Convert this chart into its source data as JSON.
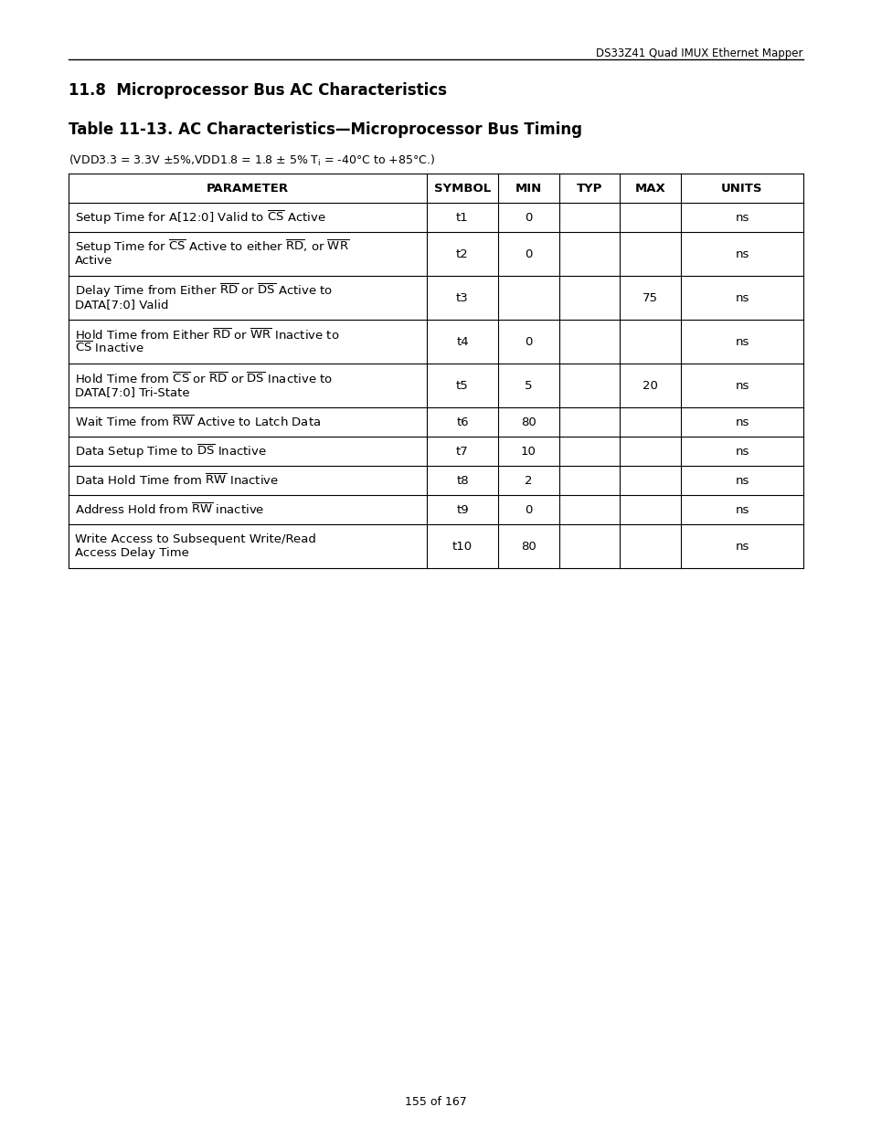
{
  "header_text": "DS33Z41 Quad IMUX Ethernet Mapper",
  "section_title": "11.8  Microprocessor Bus AC Characteristics",
  "table_title": "Table 11-13. AC Characteristics—Microprocessor Bus Timing",
  "condition": "(VDD3.3 = 3.3V ±5%,VDD1.8 = 1.8 ± 5% T$_i$ = -40°C to +85°C.)",
  "col_headers": [
    "PARAMETER",
    "SYMBOL",
    "MIN",
    "TYP",
    "MAX",
    "UNITS"
  ],
  "rows": [
    {
      "param_lines": [
        "Setup Time for A[12:0] Valid to $\\overline{\\mathrm{CS}}$ Active"
      ],
      "symbol": "t1",
      "min": "0",
      "typ": "",
      "max": "",
      "units": "ns"
    },
    {
      "param_lines": [
        "Setup Time for $\\overline{\\mathrm{CS}}$ Active to either $\\overline{\\mathrm{RD}}$, or $\\overline{\\mathrm{WR}}$",
        "Active"
      ],
      "symbol": "t2",
      "min": "0",
      "typ": "",
      "max": "",
      "units": "ns"
    },
    {
      "param_lines": [
        "Delay Time from Either $\\overline{\\mathrm{RD}}$ or $\\overline{\\mathrm{DS}}$ Active to",
        "DATA[7:0] Valid"
      ],
      "symbol": "t3",
      "min": "",
      "typ": "",
      "max": "75",
      "units": "ns"
    },
    {
      "param_lines": [
        "Hold Time from Either $\\overline{\\mathrm{RD}}$ or $\\overline{\\mathrm{WR}}$ Inactive to",
        "$\\overline{\\mathrm{CS}}$ Inactive"
      ],
      "symbol": "t4",
      "min": "0",
      "typ": "",
      "max": "",
      "units": "ns"
    },
    {
      "param_lines": [
        "Hold Time from $\\overline{\\mathrm{CS}}$ or $\\overline{\\mathrm{RD}}$ or $\\overline{\\mathrm{DS}}$ Inactive to",
        "DATA[7:0] Tri-State"
      ],
      "symbol": "t5",
      "min": "5",
      "typ": "",
      "max": "20",
      "units": "ns"
    },
    {
      "param_lines": [
        "Wait Time from $\\overline{\\mathrm{RW}}$ Active to Latch Data"
      ],
      "symbol": "t6",
      "min": "80",
      "typ": "",
      "max": "",
      "units": "ns"
    },
    {
      "param_lines": [
        "Data Setup Time to $\\overline{\\mathrm{DS}}$ Inactive"
      ],
      "symbol": "t7",
      "min": "10",
      "typ": "",
      "max": "",
      "units": "ns"
    },
    {
      "param_lines": [
        "Data Hold Time from $\\overline{\\mathrm{RW}}$ Inactive"
      ],
      "symbol": "t8",
      "min": "2",
      "typ": "",
      "max": "",
      "units": "ns"
    },
    {
      "param_lines": [
        "Address Hold from $\\overline{\\mathrm{RW}}$ inactive"
      ],
      "symbol": "t9",
      "min": "0",
      "typ": "",
      "max": "",
      "units": "ns"
    },
    {
      "param_lines": [
        "Write Access to Subsequent Write/Read",
        "Access Delay Time"
      ],
      "symbol": "t10",
      "min": "80",
      "typ": "",
      "max": "",
      "units": "ns"
    }
  ],
  "page_footer": "155 of 167",
  "bg_color": "#ffffff",
  "text_color": "#000000"
}
